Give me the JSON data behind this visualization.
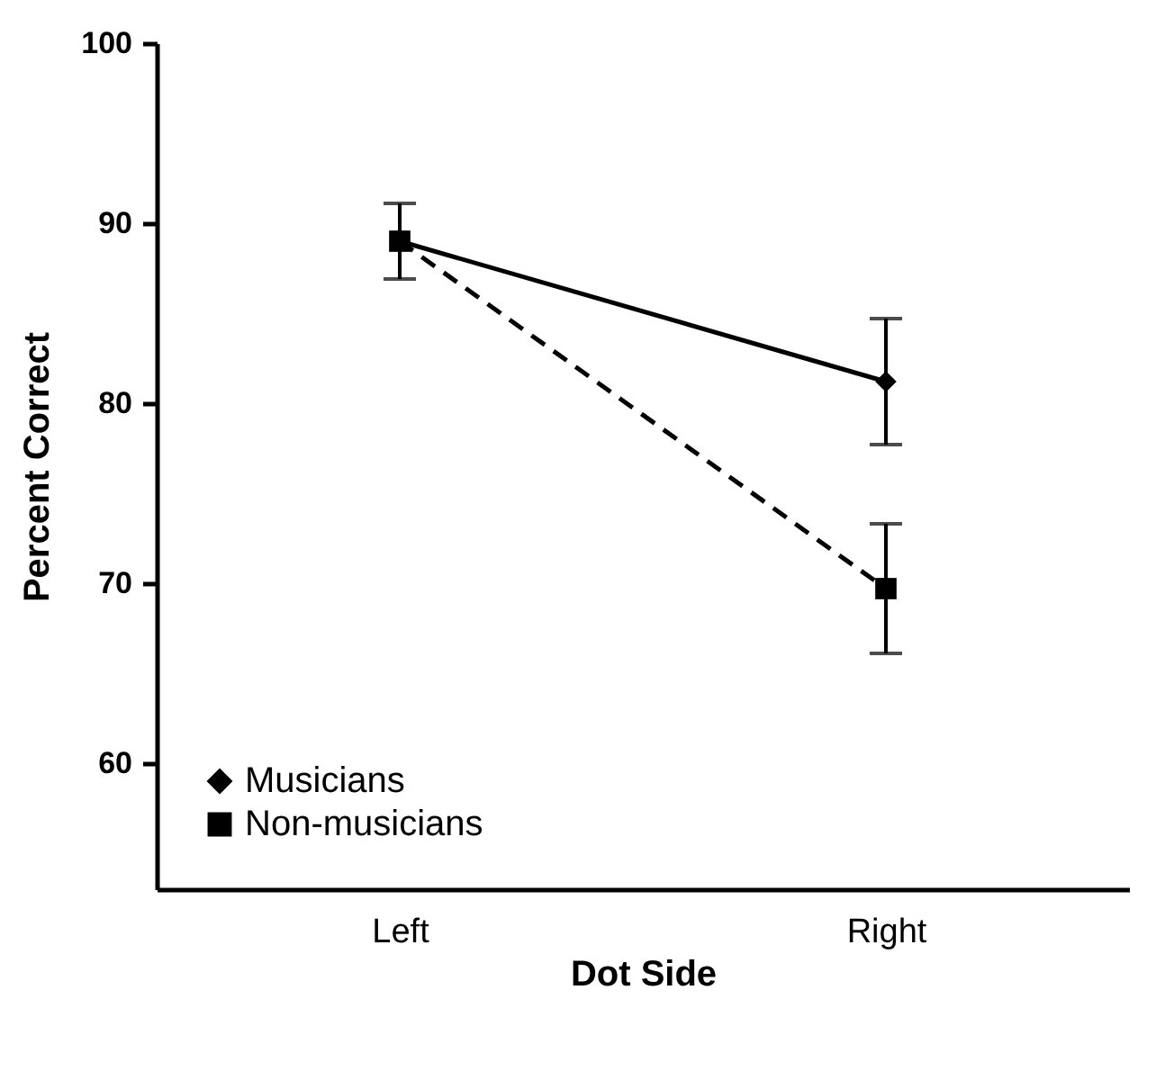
{
  "chart_data": {
    "type": "line",
    "xlabel": "Dot Side",
    "ylabel": "Percent Correct",
    "categories": [
      "Left",
      "Right"
    ],
    "series": [
      {
        "name": "Musicians",
        "color": "#000000",
        "values": [
          89.0,
          81.2
        ],
        "errors": [
          2.1,
          3.5
        ],
        "marker": "diamond",
        "line_style": "solid"
      },
      {
        "name": "Non-musicians",
        "color": "#000000",
        "values": [
          89.0,
          69.7
        ],
        "errors": [
          null,
          3.6
        ],
        "marker": "square",
        "line_style": "dashed"
      }
    ],
    "ylim": [
      53,
      100
    ],
    "yticks": [
      60,
      70,
      80,
      90,
      100
    ],
    "grid": false,
    "legend": "bottom left"
  }
}
